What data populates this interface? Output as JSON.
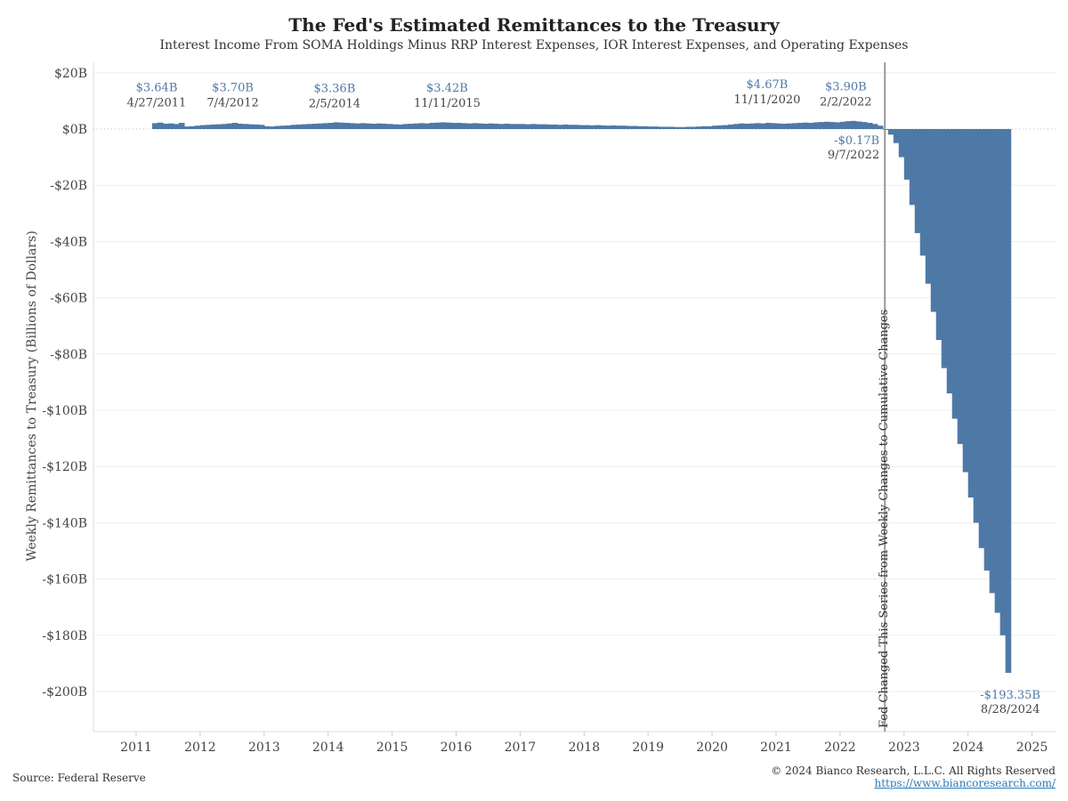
{
  "chart_data": {
    "type": "bar",
    "title": "The Fed's Estimated Remittances to the Treasury",
    "subtitle": "Interest Income From SOMA Holdings Minus RRP Interest Expenses, IOR Interest Expenses, and Operating Expenses",
    "ylabel": "Weekly Remittances to Treasury (Billions of Dollars)",
    "xlabel": "",
    "ylim": [
      -212,
      24
    ],
    "xlim": [
      2010.3,
      2025.4
    ],
    "yticks": [
      20,
      0,
      -20,
      -40,
      -60,
      -80,
      -100,
      -120,
      -140,
      -160,
      -180,
      -200
    ],
    "ytick_labels": [
      "$20B",
      "$0B",
      "-$20B",
      "-$40B",
      "-$60B",
      "-$80B",
      "-$100B",
      "-$120B",
      "-$140B",
      "-$160B",
      "-$180B",
      "-$200B"
    ],
    "xticks": [
      "2011",
      "2012",
      "2013",
      "2014",
      "2015",
      "2016",
      "2017",
      "2018",
      "2019",
      "2020",
      "2021",
      "2022",
      "2023",
      "2024",
      "2025"
    ],
    "grid": true,
    "series_start": {
      "year": 2011,
      "month": 4
    },
    "series_frequency": "monthly (approximate of weekly bars)",
    "color": "#4e79a7",
    "values": [
      2.1,
      2.3,
      1.9,
      2.0,
      1.8,
      2.2,
      0.9,
      1.0,
      1.2,
      1.4,
      1.5,
      1.6,
      1.7,
      1.8,
      2.0,
      2.2,
      1.9,
      1.8,
      1.7,
      1.6,
      1.5,
      1.0,
      0.9,
      1.1,
      1.2,
      1.3,
      1.5,
      1.6,
      1.7,
      1.8,
      1.9,
      2.0,
      2.1,
      2.2,
      2.4,
      2.3,
      2.2,
      2.1,
      2.0,
      2.1,
      2.0,
      1.9,
      2.0,
      1.9,
      1.8,
      1.7,
      1.6,
      1.8,
      1.9,
      2.0,
      2.1,
      2.0,
      2.2,
      2.3,
      2.4,
      2.3,
      2.2,
      2.2,
      2.1,
      2.0,
      2.1,
      2.0,
      1.9,
      2.0,
      1.9,
      1.8,
      1.9,
      1.8,
      1.8,
      1.8,
      1.7,
      1.8,
      1.7,
      1.7,
      1.6,
      1.6,
      1.5,
      1.6,
      1.5,
      1.5,
      1.4,
      1.4,
      1.3,
      1.4,
      1.3,
      1.2,
      1.3,
      1.2,
      1.2,
      1.1,
      1.1,
      1.0,
      1.0,
      0.9,
      0.9,
      0.8,
      0.8,
      0.8,
      0.7,
      0.7,
      0.8,
      0.8,
      0.9,
      1.0,
      1.0,
      1.2,
      1.3,
      1.4,
      1.6,
      1.8,
      2.0,
      1.9,
      2.0,
      2.1,
      2.0,
      2.2,
      2.1,
      2.0,
      1.9,
      2.0,
      2.1,
      2.2,
      2.3,
      2.2,
      2.4,
      2.5,
      2.6,
      2.5,
      2.4,
      2.6,
      2.8,
      2.9,
      2.7,
      2.5,
      2.2,
      1.8,
      1.2,
      -0.17,
      -2,
      -5,
      -10,
      -18,
      -27,
      -37,
      -45,
      -55,
      -65,
      -75,
      -85,
      -94,
      -103,
      -112,
      -122,
      -131,
      -140,
      -149,
      -157,
      -165,
      -172,
      -180,
      -193.35
    ],
    "annotations": [
      {
        "value": "$3.64B",
        "date": "4/27/2011",
        "x": 2011.32,
        "y": 3.64,
        "pos": "above"
      },
      {
        "value": "$3.70B",
        "date": "7/4/2012",
        "x": 2012.51,
        "y": 3.7,
        "pos": "above"
      },
      {
        "value": "$3.36B",
        "date": "2/5/2014",
        "x": 2014.1,
        "y": 3.36,
        "pos": "above"
      },
      {
        "value": "$3.42B",
        "date": "11/11/2015",
        "x": 2015.86,
        "y": 3.42,
        "pos": "above"
      },
      {
        "value": "$4.67B",
        "date": "11/11/2020",
        "x": 2020.86,
        "y": 4.67,
        "pos": "above"
      },
      {
        "value": "$3.90B",
        "date": "2/2/2022",
        "x": 2022.09,
        "y": 3.9,
        "pos": "above"
      },
      {
        "value": "-$0.17B",
        "date": "9/7/2022",
        "x": 2022.68,
        "y": -0.17,
        "pos": "below-left"
      },
      {
        "value": "-$193.35B",
        "date": "8/28/2024",
        "x": 2024.66,
        "y": -193.35,
        "pos": "below"
      }
    ],
    "reference_line": {
      "x": 2022.7,
      "label": "Fed Changed This Series from Weekly Changes to Cumulative Changes"
    }
  },
  "footer": {
    "source": "Source: Federal Reserve",
    "copyright": "© 2024 Bianco Research, L.L.C. All Rights Reserved",
    "url": "https://www.biancoresearch.com/"
  }
}
